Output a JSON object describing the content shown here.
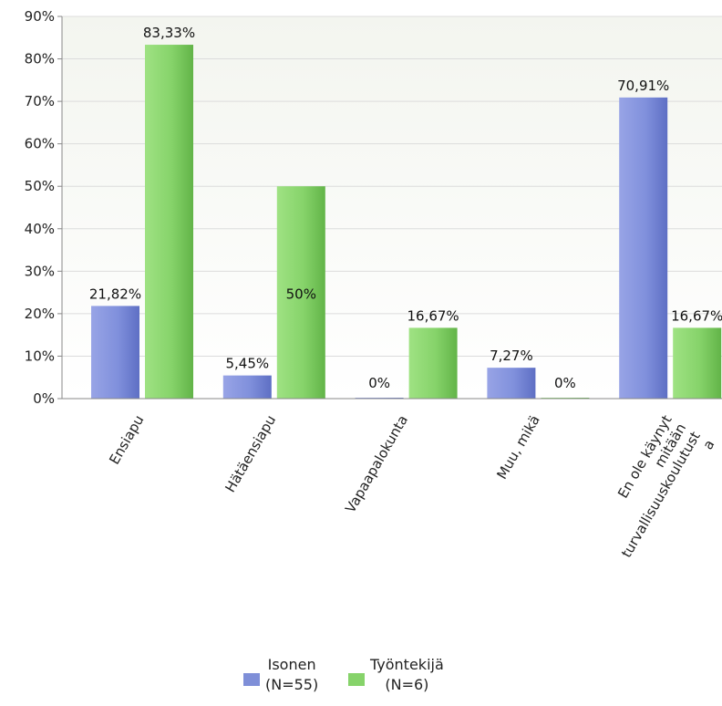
{
  "chart_data": {
    "type": "bar",
    "categories": [
      "Ensiapu",
      "Hätäensiapu",
      "Vapaapalokunta",
      "Muu, mikä",
      "En ole käynyt mitään turvallisuuskoulutusta"
    ],
    "category_label_lines": [
      [
        "Ensiapu"
      ],
      [
        "Hätäensiapu"
      ],
      [
        "Vapaapalokunta"
      ],
      [
        "Muu, mikä"
      ],
      [
        "En ole käynyt",
        "mitään",
        "turvallisuuskoulutust",
        "a"
      ]
    ],
    "series": [
      {
        "name": "Isonen (N=55)",
        "legend_lines": [
          "Isonen",
          "(N=55)"
        ],
        "color": "#7f8fd8",
        "values": [
          21.82,
          5.45,
          0,
          7.27,
          70.91
        ],
        "labels": [
          "21,82%",
          "5,45%",
          "0%",
          "7,27%",
          "70,91%"
        ]
      },
      {
        "name": "Työntekijä (N=6)",
        "legend_lines": [
          "Työntekijä",
          "(N=6)"
        ],
        "color": "#86d36a",
        "values": [
          83.33,
          50,
          16.67,
          0,
          16.67
        ],
        "labels": [
          "83,33%",
          "50%",
          "16,67%",
          "0%",
          "16,67%"
        ]
      }
    ],
    "yticks": [
      "0%",
      "10%",
      "20%",
      "30%",
      "40%",
      "50%",
      "60%",
      "70%",
      "80%",
      "90%"
    ],
    "ylim": [
      0,
      90
    ],
    "xlabel": "",
    "ylabel": "",
    "grid": true,
    "legend": "bottom-center"
  }
}
